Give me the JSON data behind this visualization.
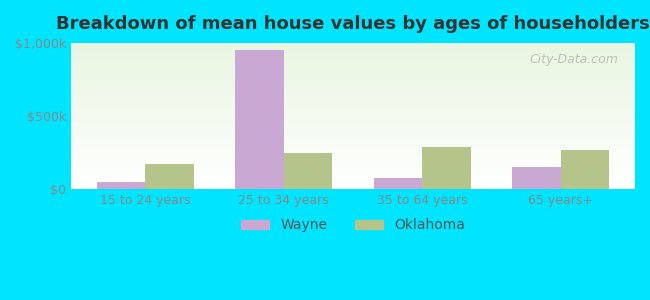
{
  "title": "Breakdown of mean house values by ages of householders",
  "categories": [
    "15 to 24 years",
    "25 to 34 years",
    "35 to 64 years",
    "65 years+"
  ],
  "wayne_values": [
    50000,
    950000,
    75000,
    150000
  ],
  "oklahoma_values": [
    175000,
    250000,
    290000,
    265000
  ],
  "wayne_color": "#c9a8d4",
  "oklahoma_color": "#b5c48a",
  "background_outer": "#00e5ff",
  "background_inner_top": "#e8f5e0",
  "background_inner_bottom": "#ffffff",
  "title_fontsize": 13,
  "tick_label_fontsize": 9,
  "legend_fontsize": 10,
  "ylim": [
    0,
    1000000
  ],
  "yticks": [
    0,
    500000,
    1000000
  ],
  "ytick_labels": [
    "$0",
    "$500k",
    "$1,000k"
  ],
  "bar_width": 0.35,
  "legend_labels": [
    "Wayne",
    "Oklahoma"
  ],
  "watermark": "City-Data.com"
}
